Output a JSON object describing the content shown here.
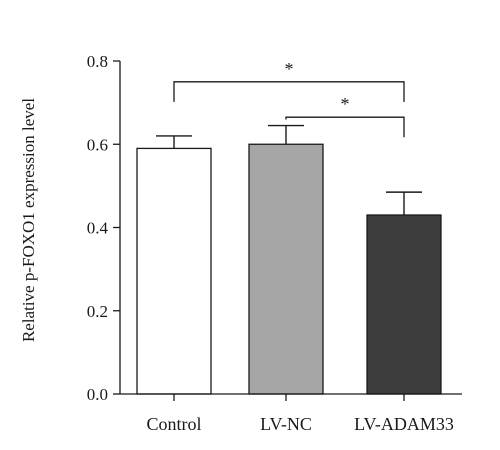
{
  "chart_data": {
    "type": "bar",
    "categories": [
      "Control",
      "LV-NC",
      "LV-ADAM33"
    ],
    "values": [
      0.59,
      0.6,
      0.43
    ],
    "errors": [
      0.03,
      0.045,
      0.055
    ],
    "colors": [
      "#ffffff",
      "#a6a6a6",
      "#3d3d3d"
    ],
    "ylabel": "Relative p-FOXO1 expression level",
    "xlabel": "",
    "ylim": [
      0,
      0.8
    ],
    "yticks": [
      0.0,
      0.2,
      0.4,
      0.6,
      0.8
    ],
    "ytick_labels": [
      "0.0",
      "0.2",
      "0.4",
      "0.6",
      "0.8"
    ],
    "grid": false,
    "significance": [
      {
        "from": "Control",
        "to": "LV-ADAM33",
        "label": "*",
        "level": 0.75
      },
      {
        "from": "LV-NC",
        "to": "LV-ADAM33",
        "label": "*",
        "level": 0.665
      }
    ]
  }
}
